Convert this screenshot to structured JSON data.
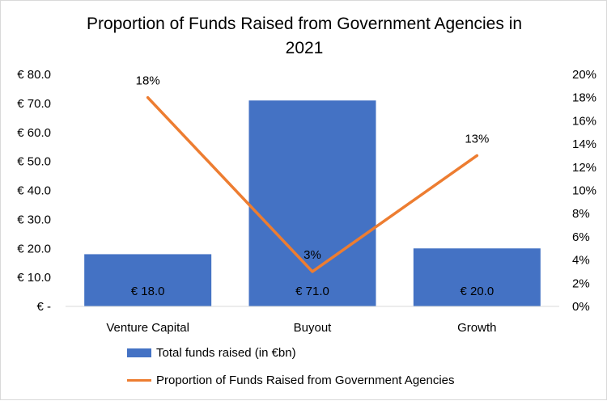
{
  "chart_data": {
    "type": "bar",
    "title_line1": "Proportion of  Funds Raised from Government Agencies in",
    "title_line2": "2021",
    "categories": [
      "Venture Capital",
      "Buyout",
      "Growth"
    ],
    "series": [
      {
        "name": "Total funds raised (in €bn)",
        "type": "bar",
        "axis": "left",
        "values": [
          18.0,
          71.0,
          20.0
        ],
        "labels": [
          "€ 18.0",
          "€ 71.0",
          "€ 20.0"
        ],
        "color": "#4472c4"
      },
      {
        "name": "Proportion of  Funds Raised from Government Agencies",
        "type": "line",
        "axis": "right",
        "values": [
          18,
          3,
          13
        ],
        "labels": [
          "18%",
          "3%",
          "13%"
        ],
        "color": "#ed7d31"
      }
    ],
    "y_left": {
      "min": 0,
      "max": 80,
      "ticks": [
        0,
        10,
        20,
        30,
        40,
        50,
        60,
        70,
        80
      ],
      "tick_labels": [
        "€ -",
        "€ 10.0",
        "€ 20.0",
        "€ 30.0",
        "€ 40.0",
        "€ 50.0",
        "€ 60.0",
        "€ 70.0",
        "€ 80.0"
      ]
    },
    "y_right": {
      "min": 0,
      "max": 20,
      "ticks": [
        0,
        2,
        4,
        6,
        8,
        10,
        12,
        14,
        16,
        18,
        20
      ],
      "tick_labels": [
        "0%",
        "2%",
        "4%",
        "6%",
        "8%",
        "10%",
        "12%",
        "14%",
        "16%",
        "18%",
        "20%"
      ]
    },
    "grid": false,
    "legend_position": "bottom"
  }
}
